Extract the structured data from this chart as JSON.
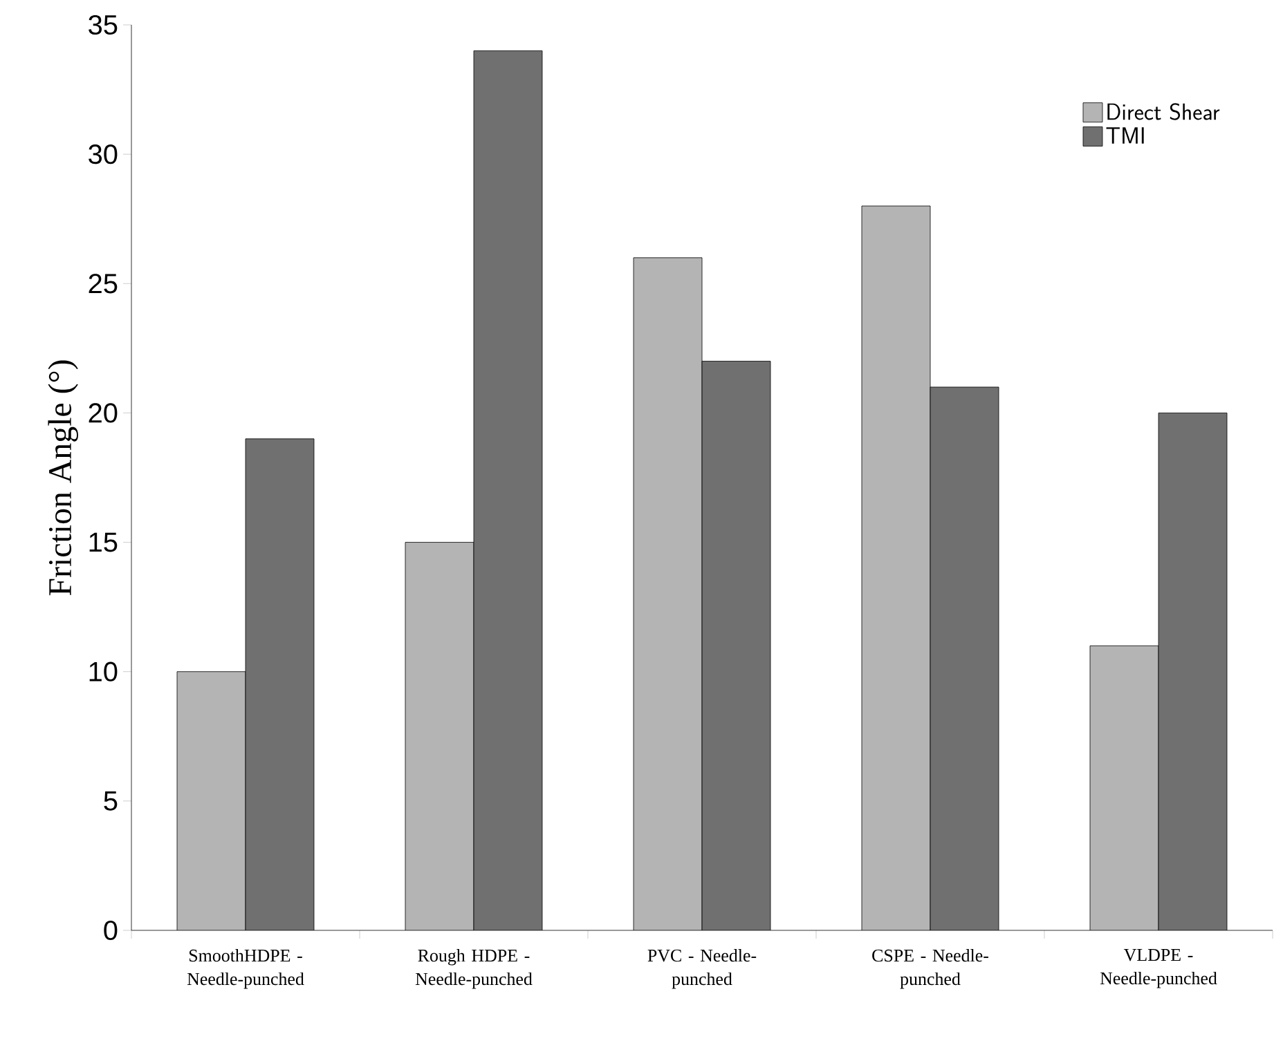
{
  "chart_data": {
    "type": "bar",
    "ylabel": "Friction Angle (°)",
    "categories": [
      "SmoothHDPE - Needle-punched",
      "Rough HDPE - Needle-punched",
      "PVC - Needle-punched",
      "CSPE - Needle-punched",
      "VLDPE - Needle-punched"
    ],
    "series": [
      {
        "name": "Direct Shear",
        "color": "#b4b4b4",
        "values": [
          10,
          15,
          26,
          28,
          11
        ]
      },
      {
        "name": "TMI",
        "color": "#707070",
        "values": [
          19,
          34,
          22,
          21,
          20
        ]
      }
    ],
    "ylim": [
      0,
      35
    ],
    "yticks": [
      0,
      5,
      10,
      15,
      20,
      25,
      30,
      35
    ],
    "legend": "top right"
  }
}
